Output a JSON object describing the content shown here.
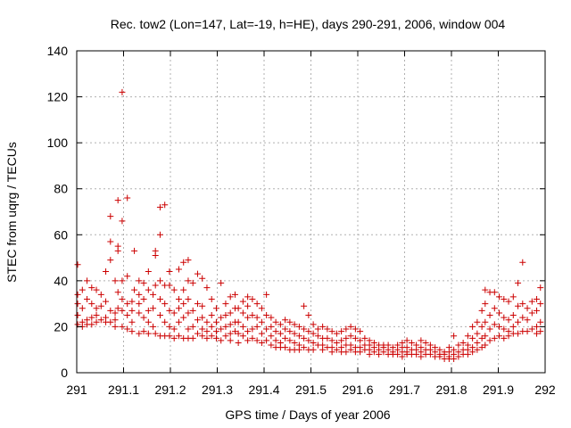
{
  "chart_data": {
    "type": "scatter",
    "title": "Rec. tow2 (Lon=147, Lat=-19, h=HE), days 290-291, 2006, window 004",
    "xlabel": "GPS time / Days of year 2006",
    "ylabel": "STEC from uqrg / TECUs",
    "xlim": [
      291,
      292
    ],
    "ylim": [
      0,
      140
    ],
    "xticks": [
      291,
      291.1,
      291.2,
      291.3,
      291.4,
      291.5,
      291.6,
      291.7,
      291.8,
      291.9,
      292
    ],
    "xtick_labels": [
      "291",
      "291.1",
      "291.2",
      "291.3",
      "291.4",
      "291.5",
      "291.6",
      "291.7",
      "291.8",
      "291.9",
      "292"
    ],
    "yticks": [
      0,
      20,
      40,
      60,
      80,
      100,
      120,
      140
    ],
    "ytick_labels": [
      "0",
      "20",
      "40",
      "60",
      "80",
      "100",
      "120",
      "140"
    ],
    "grid": true,
    "marker": "+",
    "color": "#cc0000",
    "points": [
      [
        291.002,
        47
      ],
      [
        291.002,
        34
      ],
      [
        291.002,
        30
      ],
      [
        291.002,
        25
      ],
      [
        291.002,
        21
      ],
      [
        291.012,
        36
      ],
      [
        291.012,
        28
      ],
      [
        291.012,
        22
      ],
      [
        291.012,
        20
      ],
      [
        291.022,
        40
      ],
      [
        291.022,
        32
      ],
      [
        291.022,
        23
      ],
      [
        291.022,
        21
      ],
      [
        291.032,
        37
      ],
      [
        291.032,
        30
      ],
      [
        291.032,
        24
      ],
      [
        291.032,
        21
      ],
      [
        291.042,
        36
      ],
      [
        291.042,
        28
      ],
      [
        291.042,
        25
      ],
      [
        291.042,
        22
      ],
      [
        291.052,
        34
      ],
      [
        291.052,
        29
      ],
      [
        291.052,
        23
      ],
      [
        291.062,
        44
      ],
      [
        291.062,
        31
      ],
      [
        291.062,
        24
      ],
      [
        291.062,
        22
      ],
      [
        291.072,
        68
      ],
      [
        291.072,
        57
      ],
      [
        291.072,
        49
      ],
      [
        291.072,
        27
      ],
      [
        291.072,
        22
      ],
      [
        291.082,
        40
      ],
      [
        291.082,
        26
      ],
      [
        291.082,
        23
      ],
      [
        291.082,
        20
      ],
      [
        291.088,
        75
      ],
      [
        291.088,
        55
      ],
      [
        291.088,
        53
      ],
      [
        291.088,
        35
      ],
      [
        291.088,
        28
      ],
      [
        291.097,
        122
      ],
      [
        291.097,
        66
      ],
      [
        291.097,
        40
      ],
      [
        291.097,
        32
      ],
      [
        291.097,
        27
      ],
      [
        291.097,
        20
      ],
      [
        291.108,
        76
      ],
      [
        291.108,
        42
      ],
      [
        291.108,
        30
      ],
      [
        291.108,
        25
      ],
      [
        291.108,
        19
      ],
      [
        291.118,
        31
      ],
      [
        291.118,
        27
      ],
      [
        291.118,
        22
      ],
      [
        291.118,
        18
      ],
      [
        291.123,
        53
      ],
      [
        291.123,
        36
      ],
      [
        291.133,
        40
      ],
      [
        291.133,
        34
      ],
      [
        291.133,
        30
      ],
      [
        291.133,
        26
      ],
      [
        291.133,
        17
      ],
      [
        291.143,
        39
      ],
      [
        291.143,
        32
      ],
      [
        291.143,
        24
      ],
      [
        291.143,
        18
      ],
      [
        291.153,
        44
      ],
      [
        291.153,
        36
      ],
      [
        291.153,
        27
      ],
      [
        291.153,
        22
      ],
      [
        291.153,
        17
      ],
      [
        291.163,
        34
      ],
      [
        291.163,
        28
      ],
      [
        291.163,
        20
      ],
      [
        291.168,
        53
      ],
      [
        291.168,
        51
      ],
      [
        291.168,
        38
      ],
      [
        291.168,
        17
      ],
      [
        291.178,
        72
      ],
      [
        291.178,
        60
      ],
      [
        291.178,
        40
      ],
      [
        291.178,
        32
      ],
      [
        291.178,
        25
      ],
      [
        291.178,
        16
      ],
      [
        291.188,
        73
      ],
      [
        291.188,
        38
      ],
      [
        291.188,
        30
      ],
      [
        291.188,
        22
      ],
      [
        291.188,
        16
      ],
      [
        291.198,
        44
      ],
      [
        291.198,
        38
      ],
      [
        291.198,
        27
      ],
      [
        291.198,
        20
      ],
      [
        291.198,
        16
      ],
      [
        291.208,
        36
      ],
      [
        291.208,
        26
      ],
      [
        291.208,
        19
      ],
      [
        291.208,
        15
      ],
      [
        291.218,
        45
      ],
      [
        291.218,
        32
      ],
      [
        291.218,
        28
      ],
      [
        291.218,
        22
      ],
      [
        291.218,
        16
      ],
      [
        291.228,
        48
      ],
      [
        291.228,
        36
      ],
      [
        291.228,
        30
      ],
      [
        291.228,
        24
      ],
      [
        291.228,
        15
      ],
      [
        291.238,
        49
      ],
      [
        291.238,
        40
      ],
      [
        291.238,
        32
      ],
      [
        291.238,
        26
      ],
      [
        291.238,
        19
      ],
      [
        291.238,
        15
      ],
      [
        291.248,
        39
      ],
      [
        291.248,
        27
      ],
      [
        291.248,
        20
      ],
      [
        291.248,
        15
      ],
      [
        291.258,
        43
      ],
      [
        291.258,
        30
      ],
      [
        291.258,
        23
      ],
      [
        291.258,
        17
      ],
      [
        291.268,
        41
      ],
      [
        291.268,
        29
      ],
      [
        291.268,
        24
      ],
      [
        291.268,
        19
      ],
      [
        291.268,
        16
      ],
      [
        291.278,
        37
      ],
      [
        291.278,
        22
      ],
      [
        291.278,
        18
      ],
      [
        291.278,
        15
      ],
      [
        291.288,
        32
      ],
      [
        291.288,
        25
      ],
      [
        291.288,
        20
      ],
      [
        291.288,
        16
      ],
      [
        291.298,
        28
      ],
      [
        291.298,
        22
      ],
      [
        291.298,
        18
      ],
      [
        291.298,
        15
      ],
      [
        291.308,
        39
      ],
      [
        291.308,
        24
      ],
      [
        291.308,
        19
      ],
      [
        291.308,
        14
      ],
      [
        291.318,
        30
      ],
      [
        291.318,
        25
      ],
      [
        291.318,
        20
      ],
      [
        291.318,
        16
      ],
      [
        291.328,
        33
      ],
      [
        291.328,
        26
      ],
      [
        291.328,
        21
      ],
      [
        291.328,
        17
      ],
      [
        291.328,
        14
      ],
      [
        291.338,
        34
      ],
      [
        291.338,
        28
      ],
      [
        291.338,
        22
      ],
      [
        291.338,
        18
      ],
      [
        291.345,
        28
      ],
      [
        291.345,
        22
      ],
      [
        291.345,
        17
      ],
      [
        291.345,
        13
      ],
      [
        291.355,
        31
      ],
      [
        291.355,
        26
      ],
      [
        291.355,
        20
      ],
      [
        291.355,
        16
      ],
      [
        291.365,
        33
      ],
      [
        291.365,
        29
      ],
      [
        291.365,
        24
      ],
      [
        291.365,
        18
      ],
      [
        291.365,
        14
      ],
      [
        291.375,
        32
      ],
      [
        291.375,
        25
      ],
      [
        291.375,
        19
      ],
      [
        291.375,
        15
      ],
      [
        291.385,
        30
      ],
      [
        291.385,
        24
      ],
      [
        291.385,
        20
      ],
      [
        291.385,
        14
      ],
      [
        291.395,
        28
      ],
      [
        291.395,
        22
      ],
      [
        291.395,
        17
      ],
      [
        291.395,
        13
      ],
      [
        291.405,
        34
      ],
      [
        291.405,
        25
      ],
      [
        291.405,
        19
      ],
      [
        291.405,
        14
      ],
      [
        291.415,
        24
      ],
      [
        291.415,
        20
      ],
      [
        291.415,
        16
      ],
      [
        291.415,
        12
      ],
      [
        291.425,
        22
      ],
      [
        291.425,
        18
      ],
      [
        291.425,
        14
      ],
      [
        291.425,
        11
      ],
      [
        291.435,
        21
      ],
      [
        291.435,
        17
      ],
      [
        291.435,
        13
      ],
      [
        291.435,
        11
      ],
      [
        291.445,
        23
      ],
      [
        291.445,
        19
      ],
      [
        291.445,
        15
      ],
      [
        291.445,
        11
      ],
      [
        291.455,
        22
      ],
      [
        291.455,
        18
      ],
      [
        291.455,
        14
      ],
      [
        291.455,
        10
      ],
      [
        291.465,
        21
      ],
      [
        291.465,
        17
      ],
      [
        291.465,
        13
      ],
      [
        291.465,
        10
      ],
      [
        291.475,
        20
      ],
      [
        291.475,
        16
      ],
      [
        291.475,
        12
      ],
      [
        291.475,
        10
      ],
      [
        291.485,
        29
      ],
      [
        291.485,
        19
      ],
      [
        291.485,
        15
      ],
      [
        291.485,
        11
      ],
      [
        291.495,
        25
      ],
      [
        291.495,
        18
      ],
      [
        291.495,
        14
      ],
      [
        291.495,
        10
      ],
      [
        291.505,
        21
      ],
      [
        291.505,
        17
      ],
      [
        291.505,
        13
      ],
      [
        291.505,
        10
      ],
      [
        291.515,
        19
      ],
      [
        291.515,
        16
      ],
      [
        291.515,
        12
      ],
      [
        291.525,
        20
      ],
      [
        291.525,
        15
      ],
      [
        291.525,
        12
      ],
      [
        291.525,
        10
      ],
      [
        291.535,
        19
      ],
      [
        291.535,
        15
      ],
      [
        291.535,
        11
      ],
      [
        291.545,
        18
      ],
      [
        291.545,
        14
      ],
      [
        291.545,
        11
      ],
      [
        291.545,
        9
      ],
      [
        291.555,
        17
      ],
      [
        291.555,
        13
      ],
      [
        291.555,
        10
      ],
      [
        291.565,
        18
      ],
      [
        291.565,
        14
      ],
      [
        291.565,
        11
      ],
      [
        291.565,
        9
      ],
      [
        291.575,
        19
      ],
      [
        291.575,
        15
      ],
      [
        291.575,
        12
      ],
      [
        291.575,
        9
      ],
      [
        291.585,
        20
      ],
      [
        291.585,
        16
      ],
      [
        291.585,
        12
      ],
      [
        291.585,
        10
      ],
      [
        291.595,
        19
      ],
      [
        291.595,
        15
      ],
      [
        291.595,
        11
      ],
      [
        291.595,
        9
      ],
      [
        291.605,
        18
      ],
      [
        291.605,
        14
      ],
      [
        291.605,
        11
      ],
      [
        291.605,
        9
      ],
      [
        291.615,
        15
      ],
      [
        291.615,
        12
      ],
      [
        291.615,
        10
      ],
      [
        291.625,
        14
      ],
      [
        291.625,
        12
      ],
      [
        291.625,
        10
      ],
      [
        291.625,
        8
      ],
      [
        291.635,
        13
      ],
      [
        291.635,
        11
      ],
      [
        291.635,
        9
      ],
      [
        291.645,
        12
      ],
      [
        291.645,
        10
      ],
      [
        291.645,
        8
      ],
      [
        291.655,
        12
      ],
      [
        291.655,
        11
      ],
      [
        291.655,
        9
      ],
      [
        291.665,
        12
      ],
      [
        291.665,
        10
      ],
      [
        291.665,
        8
      ],
      [
        291.675,
        11
      ],
      [
        291.675,
        9
      ],
      [
        291.675,
        8
      ],
      [
        291.685,
        12
      ],
      [
        291.685,
        10
      ],
      [
        291.685,
        8
      ],
      [
        291.695,
        13
      ],
      [
        291.695,
        11
      ],
      [
        291.695,
        9
      ],
      [
        291.695,
        7
      ],
      [
        291.705,
        14
      ],
      [
        291.705,
        11
      ],
      [
        291.705,
        9
      ],
      [
        291.705,
        8
      ],
      [
        291.715,
        13
      ],
      [
        291.715,
        10
      ],
      [
        291.715,
        8
      ],
      [
        291.725,
        12
      ],
      [
        291.725,
        10
      ],
      [
        291.725,
        8
      ],
      [
        291.735,
        14
      ],
      [
        291.735,
        11
      ],
      [
        291.735,
        9
      ],
      [
        291.735,
        7
      ],
      [
        291.745,
        13
      ],
      [
        291.745,
        10
      ],
      [
        291.745,
        8
      ],
      [
        291.755,
        12
      ],
      [
        291.755,
        10
      ],
      [
        291.755,
        8
      ],
      [
        291.765,
        11
      ],
      [
        291.765,
        9
      ],
      [
        291.765,
        7
      ],
      [
        291.775,
        10
      ],
      [
        291.775,
        8
      ],
      [
        291.775,
        7
      ],
      [
        291.785,
        9
      ],
      [
        291.785,
        8
      ],
      [
        291.785,
        6
      ],
      [
        291.795,
        11
      ],
      [
        291.795,
        9
      ],
      [
        291.795,
        7
      ],
      [
        291.795,
        6
      ],
      [
        291.805,
        16
      ],
      [
        291.805,
        10
      ],
      [
        291.805,
        8
      ],
      [
        291.805,
        6
      ],
      [
        291.815,
        12
      ],
      [
        291.815,
        9
      ],
      [
        291.815,
        7
      ],
      [
        291.825,
        13
      ],
      [
        291.825,
        10
      ],
      [
        291.825,
        8
      ],
      [
        291.835,
        16
      ],
      [
        291.835,
        12
      ],
      [
        291.835,
        10
      ],
      [
        291.835,
        8
      ],
      [
        291.845,
        20
      ],
      [
        291.845,
        15
      ],
      [
        291.845,
        11
      ],
      [
        291.845,
        9
      ],
      [
        291.855,
        22
      ],
      [
        291.855,
        17
      ],
      [
        291.855,
        13
      ],
      [
        291.855,
        10
      ],
      [
        291.865,
        27
      ],
      [
        291.865,
        20
      ],
      [
        291.865,
        15
      ],
      [
        291.865,
        11
      ],
      [
        291.872,
        36
      ],
      [
        291.872,
        30
      ],
      [
        291.872,
        22
      ],
      [
        291.872,
        16
      ],
      [
        291.872,
        12
      ],
      [
        291.882,
        35
      ],
      [
        291.882,
        25
      ],
      [
        291.882,
        19
      ],
      [
        291.882,
        14
      ],
      [
        291.892,
        35
      ],
      [
        291.892,
        28
      ],
      [
        291.892,
        21
      ],
      [
        291.892,
        15
      ],
      [
        291.902,
        33
      ],
      [
        291.902,
        26
      ],
      [
        291.902,
        20
      ],
      [
        291.902,
        16
      ],
      [
        291.912,
        32
      ],
      [
        291.912,
        24
      ],
      [
        291.912,
        19
      ],
      [
        291.912,
        15
      ],
      [
        291.922,
        31
      ],
      [
        291.922,
        23
      ],
      [
        291.922,
        18
      ],
      [
        291.922,
        16
      ],
      [
        291.932,
        33
      ],
      [
        291.932,
        25
      ],
      [
        291.932,
        20
      ],
      [
        291.932,
        17
      ],
      [
        291.942,
        39
      ],
      [
        291.942,
        29
      ],
      [
        291.942,
        22
      ],
      [
        291.942,
        17
      ],
      [
        291.952,
        48
      ],
      [
        291.952,
        30
      ],
      [
        291.952,
        24
      ],
      [
        291.952,
        18
      ],
      [
        291.962,
        28
      ],
      [
        291.962,
        23
      ],
      [
        291.962,
        18
      ],
      [
        291.972,
        31
      ],
      [
        291.972,
        26
      ],
      [
        291.972,
        19
      ],
      [
        291.982,
        32
      ],
      [
        291.982,
        27
      ],
      [
        291.982,
        20
      ],
      [
        291.982,
        17
      ],
      [
        291.99,
        37
      ],
      [
        291.99,
        30
      ],
      [
        291.99,
        22
      ],
      [
        291.99,
        18
      ]
    ]
  }
}
